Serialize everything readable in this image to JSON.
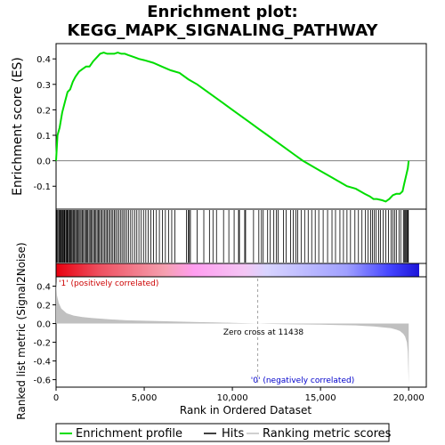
{
  "chart_data": {
    "type": "line",
    "title_line1": "Enrichment plot:",
    "title_line2": "KEGG_MAPK_SIGNALING_PATHWAY",
    "xlabel": "Rank in Ordered Dataset",
    "ylabel_top": "Enrichment score (ES)",
    "ylabel_bottom": "Ranked list metric (Signal2Noise)",
    "xlim": [
      0,
      21000
    ],
    "x_ticks": [
      0,
      5000,
      10000,
      15000,
      20000
    ],
    "x_tick_labels": [
      "0",
      "5,000",
      "10,000",
      "15,000",
      "20,000"
    ],
    "es_ylim": [
      -0.19,
      0.46
    ],
    "es_ticks": [
      -0.1,
      0.0,
      0.1,
      0.2,
      0.3,
      0.4
    ],
    "es_tick_labels": [
      "-0.1",
      "0.0",
      "0.1",
      "0.2",
      "0.3",
      "0.4"
    ],
    "metric_ylim": [
      -0.68,
      0.5
    ],
    "metric_ticks": [
      -0.6,
      -0.4,
      -0.2,
      0.0,
      0.2,
      0.4
    ],
    "metric_tick_labels": [
      "-0.6",
      "-0.4",
      "-0.2",
      "0.0",
      "0.2",
      "0.4"
    ],
    "n_genes": 20000,
    "zero_cross": 11438,
    "zero_cross_label": "Zero cross at 11438",
    "pos_label": "'1' (positively correlated)",
    "neg_label": "'0' (negatively correlated)",
    "colors": {
      "es_line": "#00dd00",
      "pos_text": "#cc0000",
      "neg_text": "#0000cc",
      "metric_fill": "#c0c0c0",
      "zero_line": "#808080"
    },
    "series": [
      {
        "name": "Enrichment profile",
        "x": [
          0,
          80,
          200,
          350,
          500,
          650,
          800,
          950,
          1100,
          1300,
          1500,
          1700,
          1900,
          2100,
          2300,
          2500,
          2700,
          2900,
          3100,
          3300,
          3500,
          3700,
          3900,
          4100,
          4300,
          4500,
          4700,
          5000,
          5500,
          6000,
          6500,
          7000,
          7500,
          8000,
          8500,
          9000,
          9500,
          10000,
          10500,
          11000,
          11500,
          12000,
          12500,
          13000,
          13500,
          14000,
          14500,
          15000,
          15500,
          16000,
          16500,
          17000,
          17500,
          17800,
          18000,
          18200,
          18500,
          18700,
          18900,
          19100,
          19300,
          19500,
          19650,
          19750,
          19850,
          19950,
          20000
        ],
        "y": [
          0.0,
          0.1,
          0.13,
          0.19,
          0.23,
          0.27,
          0.28,
          0.31,
          0.33,
          0.35,
          0.36,
          0.37,
          0.37,
          0.39,
          0.405,
          0.42,
          0.425,
          0.42,
          0.42,
          0.42,
          0.425,
          0.42,
          0.42,
          0.415,
          0.41,
          0.405,
          0.4,
          0.395,
          0.385,
          0.37,
          0.355,
          0.345,
          0.32,
          0.3,
          0.275,
          0.25,
          0.225,
          0.2,
          0.175,
          0.15,
          0.125,
          0.1,
          0.075,
          0.05,
          0.025,
          0.0,
          -0.02,
          -0.04,
          -0.06,
          -0.08,
          -0.1,
          -0.11,
          -0.13,
          -0.14,
          -0.15,
          -0.15,
          -0.155,
          -0.16,
          -0.15,
          -0.135,
          -0.13,
          -0.13,
          -0.12,
          -0.09,
          -0.06,
          -0.03,
          0.0
        ]
      },
      {
        "name": "Ranking metric scores",
        "x": [
          0,
          50,
          150,
          300,
          600,
          1000,
          1500,
          2000,
          3000,
          4000,
          5000,
          6000,
          7000,
          8000,
          9000,
          10000,
          11000,
          11438,
          12000,
          13000,
          14000,
          15000,
          16000,
          17000,
          17500,
          18000,
          18500,
          19000,
          19300,
          19500,
          19700,
          19800,
          19900,
          19950,
          19980,
          20000
        ],
        "y": [
          0.45,
          0.3,
          0.22,
          0.16,
          0.11,
          0.085,
          0.07,
          0.06,
          0.045,
          0.035,
          0.03,
          0.025,
          0.02,
          0.016,
          0.012,
          0.008,
          0.003,
          0.0,
          -0.003,
          -0.006,
          -0.009,
          -0.012,
          -0.016,
          -0.02,
          -0.025,
          -0.03,
          -0.04,
          -0.05,
          -0.065,
          -0.08,
          -0.11,
          -0.14,
          -0.2,
          -0.3,
          -0.5,
          -0.65
        ]
      }
    ],
    "hits": [
      10,
      40,
      90,
      150,
      200,
      240,
      280,
      330,
      370,
      410,
      460,
      500,
      560,
      610,
      650,
      700,
      760,
      800,
      850,
      900,
      960,
      1010,
      1060,
      1120,
      1180,
      1230,
      1300,
      1360,
      1420,
      1490,
      1550,
      1620,
      1680,
      1740,
      1800,
      1870,
      1930,
      2000,
      2060,
      2130,
      2200,
      2260,
      2330,
      2400,
      2460,
      2530,
      2600,
      2680,
      2760,
      2830,
      2900,
      2980,
      3060,
      3140,
      3220,
      3300,
      3380,
      3470,
      3560,
      3650,
      3740,
      3830,
      3920,
      4020,
      4120,
      4230,
      4340,
      4460,
      4580,
      4700,
      4830,
      4960,
      5090,
      5230,
      5380,
      5530,
      5690,
      5860,
      6030,
      6200,
      6380,
      6560,
      6740,
      7400,
      7500,
      7560,
      7620,
      8000,
      8380,
      8700,
      8900,
      9100,
      9500,
      9800,
      10100,
      10350,
      10400,
      10700,
      10750,
      11200,
      11500,
      11650,
      11750,
      12000,
      12150,
      12350,
      12500,
      12600,
      12900,
      13050,
      13300,
      13450,
      13600,
      13700,
      13900,
      14100,
      14300,
      14500,
      14700,
      14900,
      15150,
      15400,
      15650,
      15850,
      16100,
      16300,
      16500,
      16700,
      16950,
      17150,
      17350,
      17550,
      17700,
      17850,
      17950,
      18050,
      18150,
      18300,
      18400,
      18550,
      18700,
      18850,
      19000,
      19100,
      19200,
      19300,
      19450,
      19550,
      19700,
      19750,
      19800,
      19850,
      19900,
      19950,
      19980
    ],
    "legend": [
      {
        "name": "Enrichment profile",
        "color": "#00dd00"
      },
      {
        "name": "Hits",
        "color": "#000000"
      },
      {
        "name": "Ranking metric scores",
        "color": "#c0c0c0"
      }
    ]
  }
}
